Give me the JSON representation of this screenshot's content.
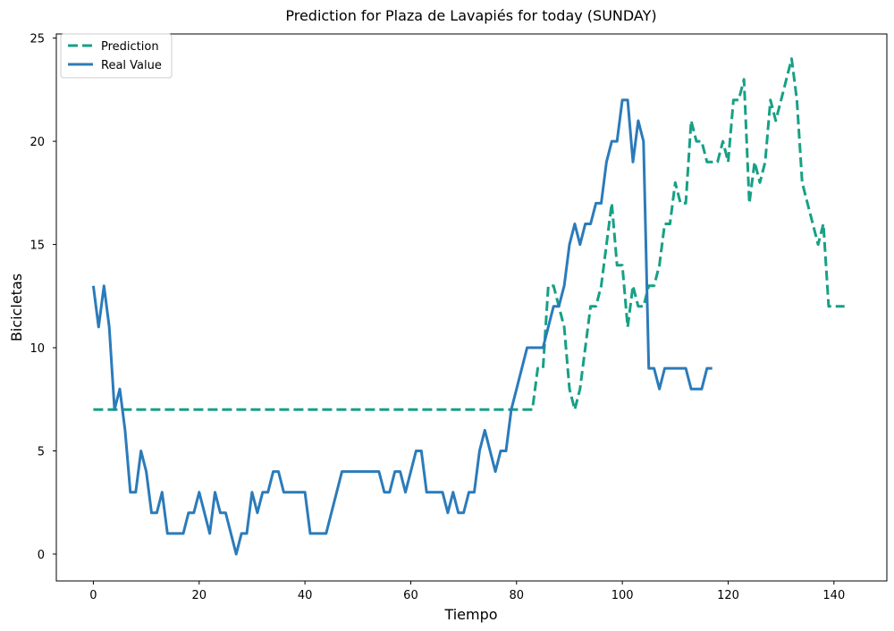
{
  "chart_data": {
    "type": "line",
    "title": "Prediction for Plaza de Lavapiés for today (SUNDAY)",
    "xlabel": "Tiempo",
    "ylabel": "Bicicletas",
    "xlim": [
      -7,
      150
    ],
    "ylim": [
      -1.3,
      25.2
    ],
    "xticks": [
      0,
      20,
      40,
      60,
      80,
      100,
      120,
      140
    ],
    "yticks": [
      0,
      5,
      10,
      15,
      20,
      25
    ],
    "grid": false,
    "legend_position": "upper-left",
    "series": [
      {
        "name": "Prediction",
        "color": "#17a085",
        "style": "dashed",
        "x": [
          0,
          83,
          84,
          85,
          86,
          87,
          88,
          89,
          90,
          91,
          92,
          93,
          94,
          95,
          96,
          97,
          98,
          99,
          100,
          101,
          102,
          103,
          104,
          105,
          106,
          107,
          108,
          109,
          110,
          111,
          112,
          113,
          114,
          115,
          116,
          117,
          118,
          119,
          120,
          121,
          122,
          123,
          124,
          125,
          126,
          127,
          128,
          129,
          130,
          131,
          132,
          133,
          134,
          135,
          136,
          137,
          138,
          139,
          140,
          141,
          142
        ],
        "y": [
          7,
          7,
          9,
          9,
          13,
          13,
          12,
          11,
          8,
          7,
          8,
          10,
          12,
          12,
          13,
          15,
          17,
          14,
          14,
          11,
          13,
          12,
          12,
          13,
          13,
          14,
          16,
          16,
          18,
          17,
          17,
          21,
          20,
          20,
          19,
          19,
          19,
          20,
          19,
          22,
          22,
          23,
          17,
          19,
          18,
          19,
          22,
          21,
          22,
          23,
          24,
          22,
          18,
          17,
          16,
          15,
          16,
          12,
          12,
          12,
          12
        ]
      },
      {
        "name": "Real Value",
        "color": "#2b7bba",
        "style": "solid",
        "x": [
          0,
          1,
          2,
          3,
          4,
          5,
          6,
          7,
          8,
          9,
          10,
          11,
          12,
          13,
          14,
          15,
          16,
          17,
          18,
          19,
          20,
          21,
          22,
          23,
          24,
          25,
          26,
          27,
          28,
          29,
          30,
          31,
          32,
          33,
          34,
          35,
          36,
          37,
          38,
          39,
          40,
          41,
          42,
          43,
          44,
          45,
          46,
          47,
          48,
          49,
          50,
          51,
          52,
          53,
          54,
          55,
          56,
          57,
          58,
          59,
          60,
          61,
          62,
          63,
          64,
          65,
          66,
          67,
          68,
          69,
          70,
          71,
          72,
          73,
          74,
          75,
          76,
          77,
          78,
          79,
          80,
          81,
          82,
          83,
          84,
          85,
          86,
          87,
          88,
          89,
          90,
          91,
          92,
          93,
          94,
          95,
          96,
          97,
          98,
          99,
          100,
          101,
          102,
          103,
          104,
          105,
          106,
          107,
          108,
          109,
          110,
          111,
          112,
          113,
          114,
          115,
          116,
          117
        ],
        "y": [
          13,
          11,
          13,
          11,
          7,
          8,
          6,
          3,
          3,
          5,
          4,
          2,
          2,
          3,
          1,
          1,
          1,
          1,
          2,
          2,
          3,
          2,
          1,
          3,
          2,
          2,
          1,
          0,
          1,
          1,
          3,
          2,
          3,
          3,
          4,
          4,
          3,
          3,
          3,
          3,
          3,
          1,
          1,
          1,
          1,
          2,
          3,
          4,
          4,
          4,
          4,
          4,
          4,
          4,
          4,
          3,
          3,
          4,
          4,
          3,
          4,
          5,
          5,
          3,
          3,
          3,
          3,
          2,
          3,
          2,
          2,
          3,
          3,
          5,
          6,
          5,
          4,
          5,
          5,
          7,
          8,
          9,
          10,
          10,
          10,
          10,
          11,
          12,
          12,
          13,
          15,
          16,
          15,
          16,
          16,
          17,
          17,
          19,
          20,
          20,
          22,
          22,
          19,
          21,
          20,
          9,
          9,
          8,
          9,
          9,
          9,
          9,
          9,
          8,
          8,
          8,
          9,
          9
        ]
      }
    ]
  }
}
